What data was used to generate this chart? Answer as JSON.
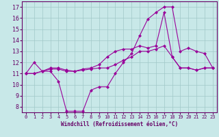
{
  "xlabel": "Windchill (Refroidissement éolien,°C)",
  "bg_color": "#c8e8e8",
  "line_color": "#990099",
  "grid_color": "#a0c8c8",
  "axis_color": "#660066",
  "text_color": "#660066",
  "xlim": [
    -0.5,
    23.5
  ],
  "ylim": [
    7.5,
    17.5
  ],
  "xticks": [
    0,
    1,
    2,
    3,
    4,
    5,
    6,
    7,
    8,
    9,
    10,
    11,
    12,
    13,
    14,
    15,
    16,
    17,
    18,
    19,
    20,
    21,
    22,
    23
  ],
  "yticks": [
    8,
    9,
    10,
    11,
    12,
    13,
    14,
    15,
    16,
    17
  ],
  "line1_x": [
    0,
    1,
    2,
    3,
    4,
    5,
    6,
    7,
    8,
    9,
    10,
    11,
    12,
    13,
    14,
    15,
    16,
    17,
    18,
    19,
    20,
    21,
    22,
    23
  ],
  "line1_y": [
    11.0,
    12.0,
    11.2,
    11.2,
    10.3,
    7.6,
    7.6,
    7.6,
    9.5,
    9.8,
    9.8,
    11.0,
    12.0,
    12.8,
    14.4,
    15.9,
    16.5,
    17.0,
    17.0,
    13.0,
    13.3,
    13.0,
    12.8,
    11.5
  ],
  "line2_x": [
    0,
    1,
    2,
    3,
    4,
    5,
    6,
    7,
    8,
    9,
    10,
    11,
    12,
    13,
    14,
    15,
    16,
    17,
    18,
    19,
    20,
    21,
    22,
    23
  ],
  "line2_y": [
    11.0,
    11.0,
    11.2,
    11.4,
    11.4,
    11.2,
    11.2,
    11.3,
    11.4,
    11.5,
    11.5,
    11.8,
    12.2,
    12.5,
    13.0,
    13.0,
    13.2,
    13.5,
    12.5,
    11.5,
    11.5,
    11.3,
    11.5,
    11.5
  ],
  "line3_x": [
    0,
    1,
    2,
    3,
    4,
    5,
    6,
    7,
    8,
    9,
    10,
    11,
    12,
    13,
    14,
    15,
    16,
    17,
    18,
    19,
    20,
    21,
    22,
    23
  ],
  "line3_y": [
    11.0,
    11.0,
    11.2,
    11.5,
    11.5,
    11.3,
    11.2,
    11.4,
    11.5,
    11.8,
    12.5,
    13.0,
    13.2,
    13.2,
    13.5,
    13.3,
    13.5,
    16.5,
    12.5,
    11.5,
    11.5,
    11.3,
    11.5,
    11.5
  ]
}
